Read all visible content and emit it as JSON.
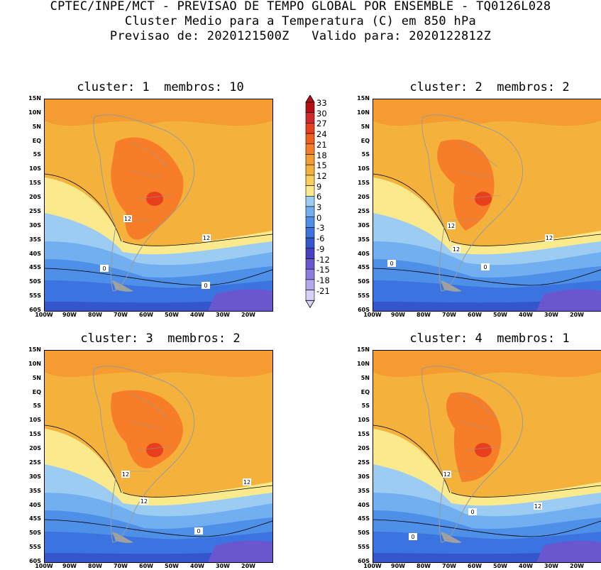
{
  "header": {
    "line1": "CPTEC/INPE/MCT - PREVISAO DE TEMPO GLOBAL POR ENSEMBLE - TQ0126L028",
    "line2": "Cluster Medio para a Temperatura (C) em 850 hPa",
    "line3": "Previsao de: 2020121500Z   Valido para: 2020122812Z"
  },
  "panels": [
    {
      "title": "cluster: 1  membros: 10",
      "contour_labels": [
        "12",
        "12",
        "0",
        "0"
      ]
    },
    {
      "title": "cluster: 2  membros: 2",
      "contour_labels": [
        "12",
        "12",
        "12",
        "0",
        "0"
      ]
    },
    {
      "title": "cluster: 3  membros: 2",
      "contour_labels": [
        "12",
        "12",
        "12",
        "0"
      ]
    },
    {
      "title": "cluster: 4  membros: 1",
      "contour_labels": [
        "12",
        "12",
        "0",
        "0"
      ]
    }
  ],
  "lat_labels": [
    "15N",
    "10N",
    "5N",
    "EQ",
    "5S",
    "10S",
    "15S",
    "20S",
    "25S",
    "30S",
    "35S",
    "40S",
    "45S",
    "50S",
    "55S",
    "60S"
  ],
  "lon_labels": [
    "100W",
    "90W",
    "80W",
    "70W",
    "60W",
    "50W",
    "40W",
    "30W",
    "20W"
  ],
  "colorbar": {
    "labels": [
      "33",
      "30",
      "27",
      "24",
      "21",
      "18",
      "15",
      "12",
      "9",
      "6",
      "3",
      "0",
      "-3",
      "-6",
      "-9",
      "-12",
      "-15",
      "-18",
      "-21"
    ],
    "colors": [
      "#b50f12",
      "#d3272a",
      "#e8401f",
      "#f25f1c",
      "#f77d28",
      "#f49b32",
      "#f4b23d",
      "#f8cf58",
      "#fbea8c",
      "#9dccf2",
      "#72aff0",
      "#4e8fe8",
      "#3b74e0",
      "#3555cc",
      "#4740c4",
      "#6a57cf",
      "#8d7de0",
      "#b3a8ec",
      "#d8d0f6"
    ]
  }
}
